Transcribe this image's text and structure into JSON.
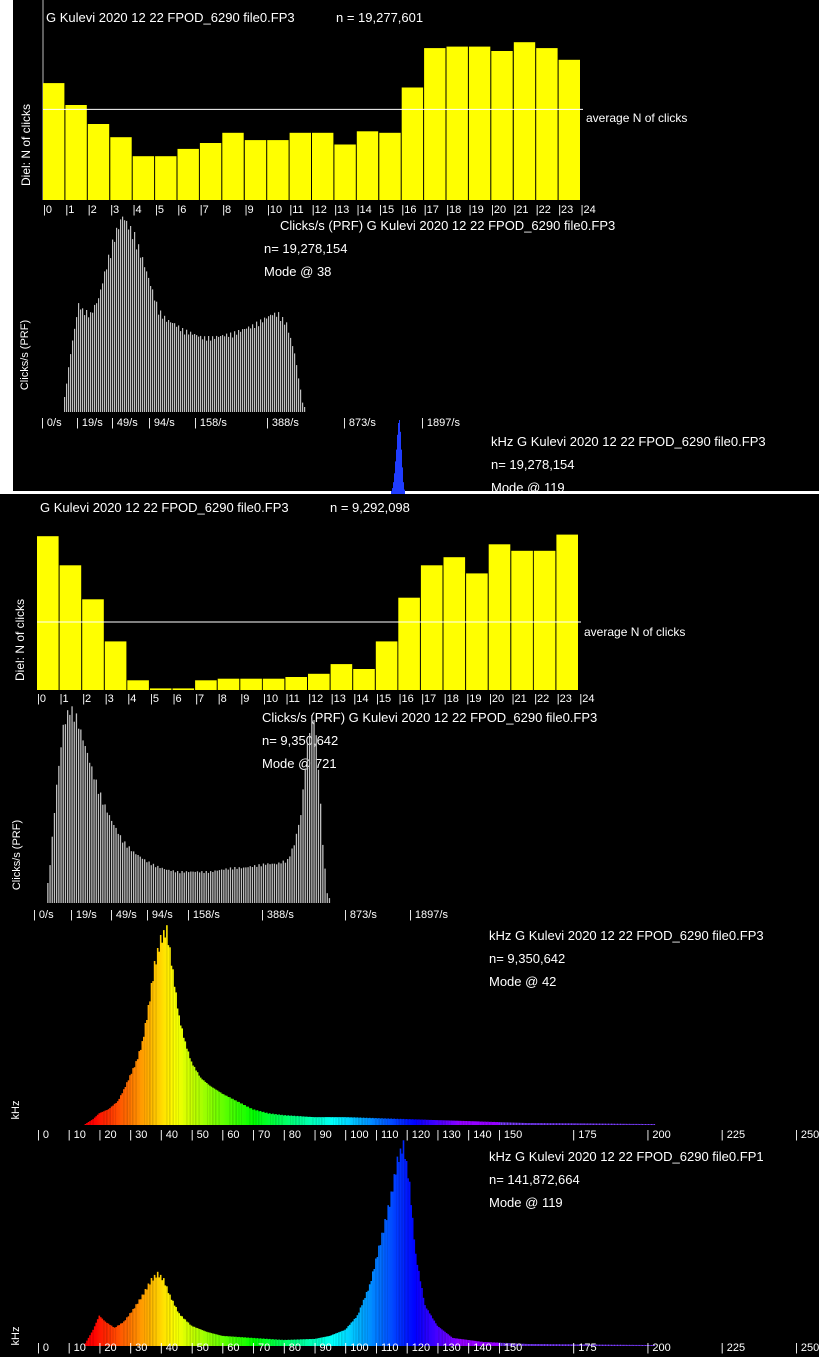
{
  "chart_data": [
    {
      "type": "bar",
      "id": "diel1",
      "title": "G Kulevi 2020 12 22 FPOD_6290 file0.FP3",
      "n_label": "n = 19,277,601",
      "ylabel": "Diel: N of clicks",
      "average_label": "average N of clicks",
      "average_value": 0.62,
      "categories": [
        "0",
        "1",
        "2",
        "3",
        "4",
        "5",
        "6",
        "7",
        "8",
        "9",
        "10",
        "11",
        "12",
        "13",
        "14",
        "15",
        "16",
        "17",
        "18",
        "19",
        "20",
        "21",
        "22",
        "23"
      ],
      "x_tick_labels": [
        "|0",
        "|1",
        "|2",
        "|3",
        "|4",
        "|5",
        "|6",
        "|7",
        "|8",
        "|9",
        "|10",
        "|11",
        "|12",
        "|13",
        "|14",
        "|15",
        "|16",
        "|17",
        "|18",
        "|19",
        "|20",
        "|21",
        "|22",
        "|23",
        "|24"
      ],
      "values": [
        0.8,
        0.65,
        0.52,
        0.43,
        0.3,
        0.3,
        0.35,
        0.39,
        0.46,
        0.41,
        0.41,
        0.46,
        0.46,
        0.38,
        0.47,
        0.46,
        0.77,
        1.04,
        1.05,
        1.05,
        1.02,
        1.08,
        1.04,
        0.96
      ],
      "ylim": [
        0,
        1.15
      ],
      "bar_color": "#ffff00"
    },
    {
      "type": "bar",
      "id": "prf1",
      "title": "Clicks/s (PRF)   G Kulevi 2020 12 22 FPOD_6290 file0.FP3",
      "n_label": "n= 19,278,154",
      "mode_label": "Mode @ 38",
      "ylabel": "Clicks/s (PRF)",
      "x_tick_labels": [
        "| 0/s",
        "| 19/s",
        "| 49/s",
        "| 94/s",
        "| 158/s",
        "| 388/s",
        "| 873/s",
        "| 1897/s"
      ],
      "profile": [
        [
          0,
          0
        ],
        [
          4,
          0.3
        ],
        [
          8,
          0.55
        ],
        [
          10,
          0.52
        ],
        [
          14,
          0.5
        ],
        [
          18,
          0.58
        ],
        [
          22,
          0.75
        ],
        [
          26,
          0.9
        ],
        [
          30,
          1.0
        ],
        [
          33,
          0.95
        ],
        [
          36,
          0.9
        ],
        [
          40,
          0.78
        ],
        [
          44,
          0.65
        ],
        [
          48,
          0.52
        ],
        [
          52,
          0.47
        ],
        [
          56,
          0.45
        ],
        [
          60,
          0.42
        ],
        [
          65,
          0.4
        ],
        [
          70,
          0.38
        ],
        [
          75,
          0.38
        ],
        [
          80,
          0.39
        ],
        [
          85,
          0.4
        ],
        [
          90,
          0.42
        ],
        [
          95,
          0.44
        ],
        [
          100,
          0.47
        ],
        [
          105,
          0.5
        ],
        [
          108,
          0.5
        ],
        [
          112,
          0.45
        ],
        [
          116,
          0.3
        ],
        [
          120,
          0.05
        ],
        [
          122,
          0
        ]
      ],
      "ylim": [
        0,
        1
      ],
      "bar_color": "#bfbfbf"
    },
    {
      "type": "bar",
      "id": "khz1",
      "title": "kHz    G Kulevi 2020 12 22 FPOD_6290 file0.FP3",
      "n_label": "n= 19,278,154",
      "mode_label": "Mode @ 119",
      "bar_color": "#1f3cff"
    },
    {
      "type": "bar",
      "id": "diel2",
      "title": "G Kulevi 2020 12 22 FPOD_6290 file0.FP3",
      "n_label": "n = 9,292,098",
      "ylabel": "Diel: N of clicks",
      "average_label": "average N of clicks",
      "average_value": 0.42,
      "categories": [
        "0",
        "1",
        "2",
        "3",
        "4",
        "5",
        "6",
        "7",
        "8",
        "9",
        "10",
        "11",
        "12",
        "13",
        "14",
        "15",
        "16",
        "17",
        "18",
        "19",
        "20",
        "21",
        "22",
        "23"
      ],
      "x_tick_labels": [
        "|0",
        "|1",
        "|2",
        "|3",
        "|4",
        "|5",
        "|6",
        "|7",
        "|8",
        "|9",
        "|10",
        "|11",
        "|12",
        "|13",
        "|14",
        "|15",
        "|16",
        "|17",
        "|18",
        "|19",
        "|20",
        "|21",
        "|22",
        "|23",
        "|24"
      ],
      "values": [
        0.95,
        0.77,
        0.56,
        0.3,
        0.06,
        0.01,
        0.01,
        0.06,
        0.07,
        0.07,
        0.07,
        0.08,
        0.1,
        0.16,
        0.13,
        0.3,
        0.57,
        0.77,
        0.82,
        0.72,
        0.9,
        0.86,
        0.86,
        0.96
      ],
      "ylim": [
        0,
        1.05
      ],
      "bar_color": "#ffff00"
    },
    {
      "type": "bar",
      "id": "prf2",
      "title": "Clicks/s (PRF)   G Kulevi 2020 12 22 FPOD_6290 file0.FP3",
      "n_label": "n= 9,350,642",
      "mode_label": "Mode @ 721",
      "ylabel": "Clicks/s (PRF)",
      "x_tick_labels": [
        "| 0/s",
        "| 19/s",
        "| 49/s",
        "| 94/s",
        "| 158/s",
        "| 388/s",
        "| 873/s",
        "| 1897/s"
      ],
      "profile": [
        [
          0,
          0
        ],
        [
          2,
          0.2
        ],
        [
          5,
          0.6
        ],
        [
          8,
          0.9
        ],
        [
          11,
          1.0
        ],
        [
          14,
          0.95
        ],
        [
          18,
          0.8
        ],
        [
          22,
          0.65
        ],
        [
          26,
          0.52
        ],
        [
          30,
          0.42
        ],
        [
          35,
          0.32
        ],
        [
          40,
          0.26
        ],
        [
          45,
          0.22
        ],
        [
          50,
          0.19
        ],
        [
          55,
          0.17
        ],
        [
          60,
          0.16
        ],
        [
          65,
          0.16
        ],
        [
          70,
          0.16
        ],
        [
          75,
          0.16
        ],
        [
          80,
          0.17
        ],
        [
          85,
          0.18
        ],
        [
          90,
          0.18
        ],
        [
          95,
          0.19
        ],
        [
          100,
          0.2
        ],
        [
          105,
          0.2
        ],
        [
          110,
          0.22
        ],
        [
          113,
          0.3
        ],
        [
          116,
          0.45
        ],
        [
          118,
          0.7
        ],
        [
          120,
          0.9
        ],
        [
          122,
          0.98
        ],
        [
          124,
          0.7
        ],
        [
          126,
          0.3
        ],
        [
          128,
          0.05
        ],
        [
          130,
          0
        ]
      ],
      "ylim": [
        0,
        1
      ],
      "bar_color": "#bfbfbf"
    },
    {
      "type": "bar",
      "id": "khz2",
      "title": "kHz    G Kulevi 2020 12 22 FPOD_6290 file0.FP3",
      "n_label": "n= 9,350,642",
      "mode_label": "Mode @ 42",
      "ylabel": "kHz",
      "x_tick_labels": [
        "| 0",
        "| 10",
        "| 20",
        "| 30",
        "| 40",
        "| 50",
        "| 60",
        "| 70",
        "| 80",
        "| 90",
        "| 100",
        "| 110",
        "| 120",
        "| 130",
        "| 140",
        "| 150",
        "| 175",
        "| 200",
        "| 225",
        "| 250"
      ],
      "profile": [
        [
          15,
          0
        ],
        [
          18,
          0.03
        ],
        [
          20,
          0.06
        ],
        [
          23,
          0.08
        ],
        [
          26,
          0.12
        ],
        [
          28,
          0.18
        ],
        [
          30,
          0.25
        ],
        [
          32,
          0.32
        ],
        [
          34,
          0.42
        ],
        [
          36,
          0.6
        ],
        [
          38,
          0.82
        ],
        [
          40,
          0.95
        ],
        [
          42,
          1.0
        ],
        [
          44,
          0.78
        ],
        [
          46,
          0.55
        ],
        [
          48,
          0.42
        ],
        [
          50,
          0.32
        ],
        [
          53,
          0.24
        ],
        [
          56,
          0.2
        ],
        [
          60,
          0.16
        ],
        [
          65,
          0.12
        ],
        [
          70,
          0.08
        ],
        [
          75,
          0.06
        ],
        [
          80,
          0.05
        ],
        [
          90,
          0.04
        ],
        [
          100,
          0.04
        ],
        [
          110,
          0.035
        ],
        [
          120,
          0.03
        ],
        [
          130,
          0.025
        ],
        [
          140,
          0.02
        ],
        [
          150,
          0.015
        ],
        [
          160,
          0.01
        ],
        [
          180,
          0.008
        ],
        [
          200,
          0.005
        ],
        [
          205,
          0
        ]
      ],
      "ylim": [
        0,
        1
      ]
    },
    {
      "type": "bar",
      "id": "khz3",
      "title": "kHz    G Kulevi 2020 12 22 FPOD_6290 file0.FP1",
      "n_label": "n= 141,872,664",
      "mode_label": "Mode @ 119",
      "ylabel": "kHz",
      "x_tick_labels": [
        "| 0",
        "| 10",
        "| 20",
        "| 30",
        "| 40",
        "| 50",
        "| 60",
        "| 70",
        "| 80",
        "| 90",
        "| 100",
        "| 110",
        "| 120",
        "| 130",
        "| 140",
        "| 150",
        "| 175",
        "| 200",
        "| 225",
        "| 250"
      ],
      "profile": [
        [
          15,
          0
        ],
        [
          18,
          0.08
        ],
        [
          20,
          0.15
        ],
        [
          22,
          0.12
        ],
        [
          25,
          0.09
        ],
        [
          28,
          0.12
        ],
        [
          31,
          0.18
        ],
        [
          34,
          0.25
        ],
        [
          37,
          0.33
        ],
        [
          39,
          0.36
        ],
        [
          41,
          0.33
        ],
        [
          43,
          0.25
        ],
        [
          46,
          0.16
        ],
        [
          50,
          0.1
        ],
        [
          55,
          0.07
        ],
        [
          60,
          0.05
        ],
        [
          70,
          0.04
        ],
        [
          80,
          0.03
        ],
        [
          90,
          0.035
        ],
        [
          95,
          0.05
        ],
        [
          100,
          0.08
        ],
        [
          104,
          0.15
        ],
        [
          108,
          0.3
        ],
        [
          112,
          0.55
        ],
        [
          115,
          0.75
        ],
        [
          117,
          0.92
        ],
        [
          119,
          1.0
        ],
        [
          121,
          0.8
        ],
        [
          123,
          0.45
        ],
        [
          126,
          0.2
        ],
        [
          130,
          0.1
        ],
        [
          135,
          0.04
        ],
        [
          145,
          0.02
        ],
        [
          160,
          0.01
        ],
        [
          200,
          0.005
        ],
        [
          205,
          0
        ]
      ],
      "ylim": [
        0,
        1
      ]
    }
  ]
}
